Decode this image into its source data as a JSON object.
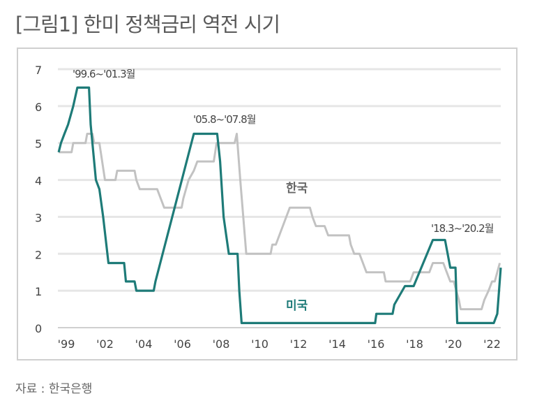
{
  "title": "[그림1] 한미 정책금리 역전 시기",
  "source": "자료 : 한국은행",
  "chart_data": {
    "type": "line",
    "title": "[그림1] 한미 정책금리 역전 시기",
    "ylim": [
      0,
      7
    ],
    "yticks": [
      "0",
      "1",
      "2",
      "3",
      "4",
      "5",
      "6",
      "7"
    ],
    "xtick_labels": [
      "'99",
      "'02",
      "'04",
      "'06",
      "'08",
      "'10",
      "'12",
      "'14",
      "'16",
      "'18",
      "'20",
      "'22"
    ],
    "xtick_years": [
      1999,
      2002,
      2004,
      2006,
      2008,
      2010,
      2012,
      2014,
      2016,
      2018,
      2020,
      2022
    ],
    "grid": true,
    "colors": {
      "korea": "#c2c2c2",
      "us": "#1e7b78"
    },
    "annotations": [
      "'99.6~'01.3월",
      "'05.8~'07.8월",
      "'18.3~'20.2월"
    ],
    "series": [
      {
        "name": "한국",
        "points": [
          [
            1998.41,
            4.75
          ],
          [
            1999.41,
            4.75
          ],
          [
            1999.54,
            5.0
          ],
          [
            2000.49,
            5.0
          ],
          [
            2000.62,
            5.25
          ],
          [
            2001.03,
            5.25
          ],
          [
            2001.16,
            5.0
          ],
          [
            2001.57,
            5.0
          ],
          [
            2002.0,
            4.0
          ],
          [
            2002.54,
            4.0
          ],
          [
            2002.63,
            4.25
          ],
          [
            2003.53,
            4.25
          ],
          [
            2003.62,
            4.0
          ],
          [
            2003.8,
            3.75
          ],
          [
            2004.7,
            3.75
          ],
          [
            2004.88,
            3.5
          ],
          [
            2005.06,
            3.25
          ],
          [
            2005.96,
            3.25
          ],
          [
            2006.05,
            3.5
          ],
          [
            2006.32,
            4.0
          ],
          [
            2006.59,
            4.25
          ],
          [
            2006.77,
            4.5
          ],
          [
            2007.62,
            4.5
          ],
          [
            2007.77,
            5.0
          ],
          [
            2008.7,
            5.0
          ],
          [
            2008.81,
            5.25
          ],
          [
            2008.99,
            4.0
          ],
          [
            2009.3,
            2.0
          ],
          [
            2010.56,
            2.0
          ],
          [
            2010.65,
            2.25
          ],
          [
            2010.83,
            2.25
          ],
          [
            2011.01,
            2.5
          ],
          [
            2011.19,
            2.75
          ],
          [
            2011.37,
            3.0
          ],
          [
            2011.55,
            3.25
          ],
          [
            2012.59,
            3.25
          ],
          [
            2012.72,
            3.0
          ],
          [
            2012.9,
            2.75
          ],
          [
            2013.35,
            2.75
          ],
          [
            2013.53,
            2.5
          ],
          [
            2014.61,
            2.5
          ],
          [
            2014.7,
            2.25
          ],
          [
            2014.88,
            2.0
          ],
          [
            2015.15,
            2.0
          ],
          [
            2015.33,
            1.75
          ],
          [
            2015.51,
            1.5
          ],
          [
            2016.41,
            1.5
          ],
          [
            2016.5,
            1.25
          ],
          [
            2017.77,
            1.25
          ],
          [
            2017.95,
            1.5
          ],
          [
            2018.76,
            1.5
          ],
          [
            2018.94,
            1.75
          ],
          [
            2019.48,
            1.75
          ],
          [
            2019.66,
            1.5
          ],
          [
            2019.84,
            1.25
          ],
          [
            2020.02,
            1.25
          ],
          [
            2020.29,
            0.75
          ],
          [
            2020.38,
            0.5
          ],
          [
            2021.46,
            0.5
          ],
          [
            2021.6,
            0.75
          ],
          [
            2021.82,
            1.0
          ],
          [
            2022.0,
            1.25
          ],
          [
            2022.14,
            1.25
          ],
          [
            2022.27,
            1.5
          ],
          [
            2022.4,
            1.75
          ]
        ]
      },
      {
        "name": "미국",
        "points": [
          [
            1998.41,
            4.75
          ],
          [
            1998.59,
            5.0
          ],
          [
            1998.86,
            5.25
          ],
          [
            1999.14,
            5.5
          ],
          [
            1999.54,
            6.0
          ],
          [
            1999.86,
            6.5
          ],
          [
            2000.76,
            6.5
          ],
          [
            2000.89,
            5.5
          ],
          [
            2001.3,
            4.0
          ],
          [
            2001.57,
            3.75
          ],
          [
            2001.86,
            3.0
          ],
          [
            2002.18,
            1.75
          ],
          [
            2002.99,
            1.75
          ],
          [
            2003.08,
            1.25
          ],
          [
            2003.53,
            1.25
          ],
          [
            2003.62,
            1.0
          ],
          [
            2004.52,
            1.0
          ],
          [
            2004.61,
            1.25
          ],
          [
            2006.59,
            5.25
          ],
          [
            2007.8,
            5.25
          ],
          [
            2007.95,
            4.5
          ],
          [
            2008.13,
            3.0
          ],
          [
            2008.4,
            2.0
          ],
          [
            2008.85,
            2.0
          ],
          [
            2008.94,
            1.0
          ],
          [
            2009.06,
            0.125
          ],
          [
            2015.96,
            0.125
          ],
          [
            2016.02,
            0.375
          ],
          [
            2016.86,
            0.375
          ],
          [
            2016.95,
            0.625
          ],
          [
            2017.5,
            1.125
          ],
          [
            2017.95,
            1.125
          ],
          [
            2018.94,
            2.375
          ],
          [
            2019.57,
            2.375
          ],
          [
            2019.84,
            1.625
          ],
          [
            2020.11,
            1.625
          ],
          [
            2020.2,
            0.125
          ],
          [
            2022.09,
            0.125
          ],
          [
            2022.27,
            0.375
          ],
          [
            2022.45,
            1.625
          ]
        ]
      }
    ]
  }
}
